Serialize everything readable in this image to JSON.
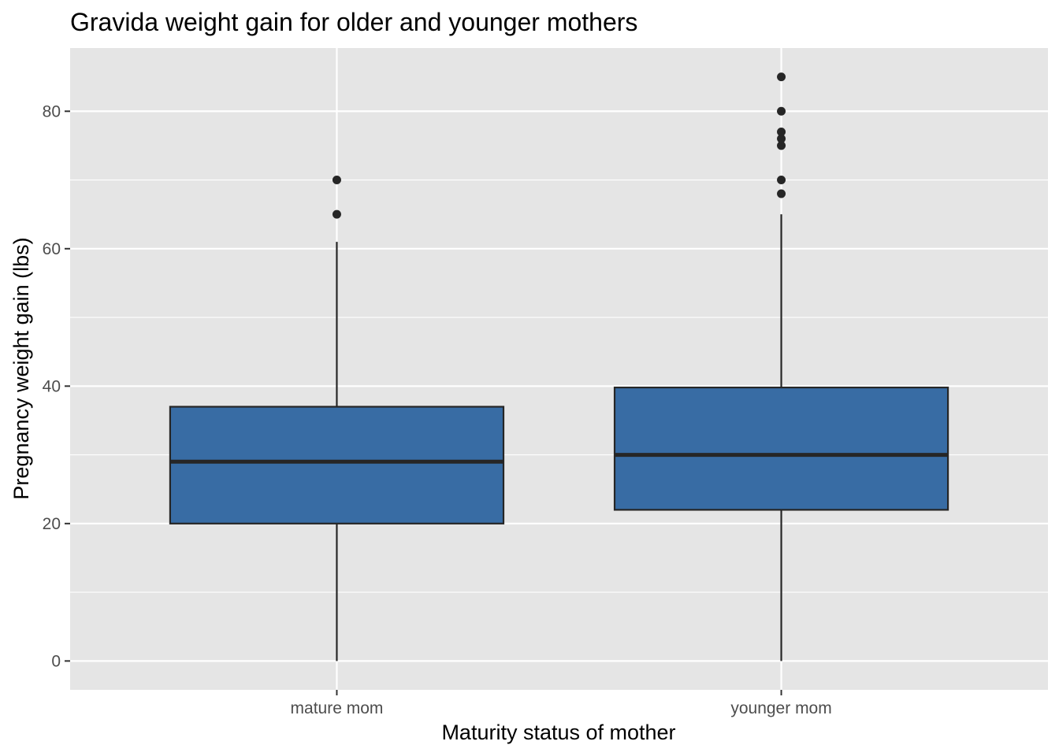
{
  "chart_data": {
    "type": "boxplot",
    "title": "Gravida weight gain for older and younger mothers",
    "xlabel": "Maturity status of mother",
    "ylabel": "Pregnancy weight gain (lbs)",
    "ylim": [
      -4.2,
      89.2
    ],
    "yticks": [
      0,
      20,
      40,
      60,
      80
    ],
    "y_minor_ticks": [
      10,
      30,
      50,
      70
    ],
    "categories": [
      "mature mom",
      "younger mom"
    ],
    "boxes": [
      {
        "category": "mature mom",
        "min": 0,
        "q1": 20,
        "median": 29,
        "q3": 37,
        "max": 61,
        "outliers": [
          65,
          70
        ]
      },
      {
        "category": "younger mom",
        "min": 0,
        "q1": 22,
        "median": 30,
        "q3": 39.8,
        "max": 65,
        "outliers": [
          68,
          70,
          75,
          76,
          77,
          80,
          85
        ]
      }
    ],
    "grid": true,
    "colors": {
      "panel_background": "#e5e5e5",
      "grid": "#ffffff",
      "box_fill": "#386ca4",
      "box_line": "#262626",
      "outlier": "#262626"
    }
  }
}
